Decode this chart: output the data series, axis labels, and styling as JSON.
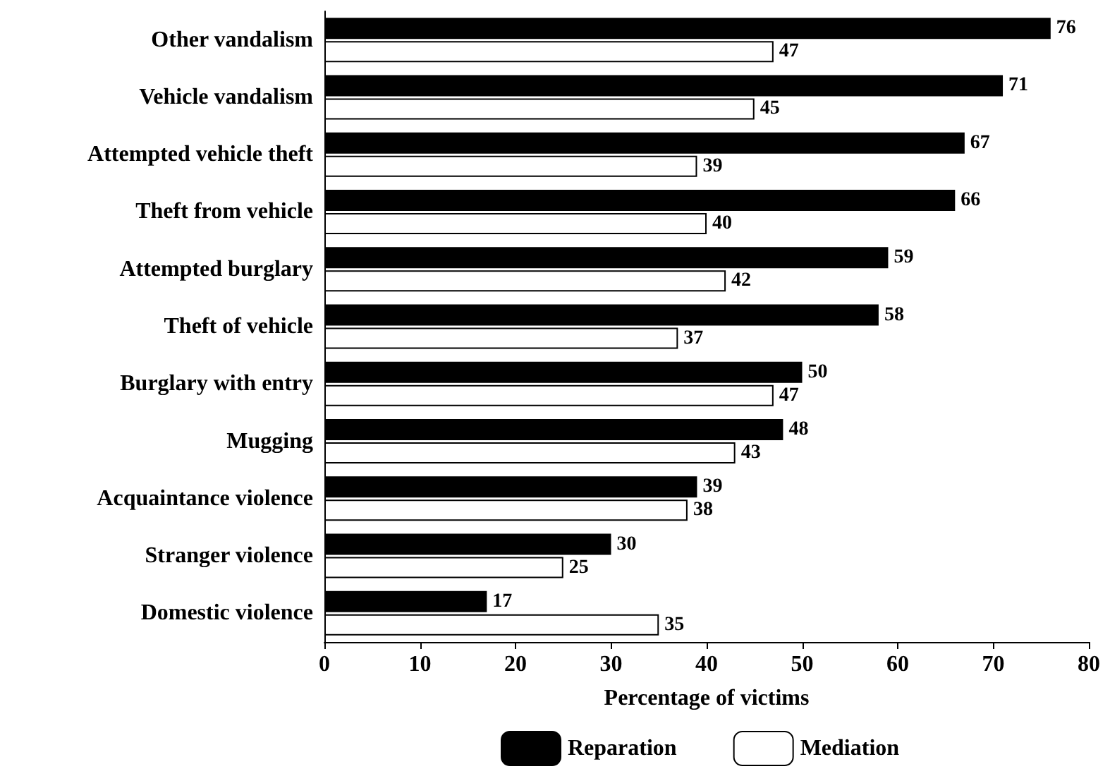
{
  "chart_data": {
    "type": "bar",
    "orientation": "horizontal",
    "categories": [
      "Other vandalism",
      "Vehicle vandalism",
      "Attempted vehicle theft",
      "Theft from vehicle",
      "Attempted burglary",
      "Theft of vehicle",
      "Burglary with entry",
      "Mugging",
      "Acquaintance violence",
      "Stranger violence",
      "Domestic violence"
    ],
    "series": [
      {
        "name": "Reparation",
        "color": "#000000",
        "values": [
          76,
          71,
          67,
          66,
          59,
          58,
          50,
          48,
          39,
          30,
          17
        ]
      },
      {
        "name": "Mediation",
        "color": "#ffffff",
        "values": [
          47,
          45,
          39,
          40,
          42,
          37,
          47,
          43,
          38,
          25,
          35
        ]
      }
    ],
    "xlabel": "Percentage of victims",
    "xlim": [
      0,
      80
    ],
    "xticks": [
      0,
      10,
      20,
      30,
      40,
      50,
      60,
      70,
      80
    ],
    "data_labels": true,
    "grid": false,
    "legend": "bottom"
  }
}
